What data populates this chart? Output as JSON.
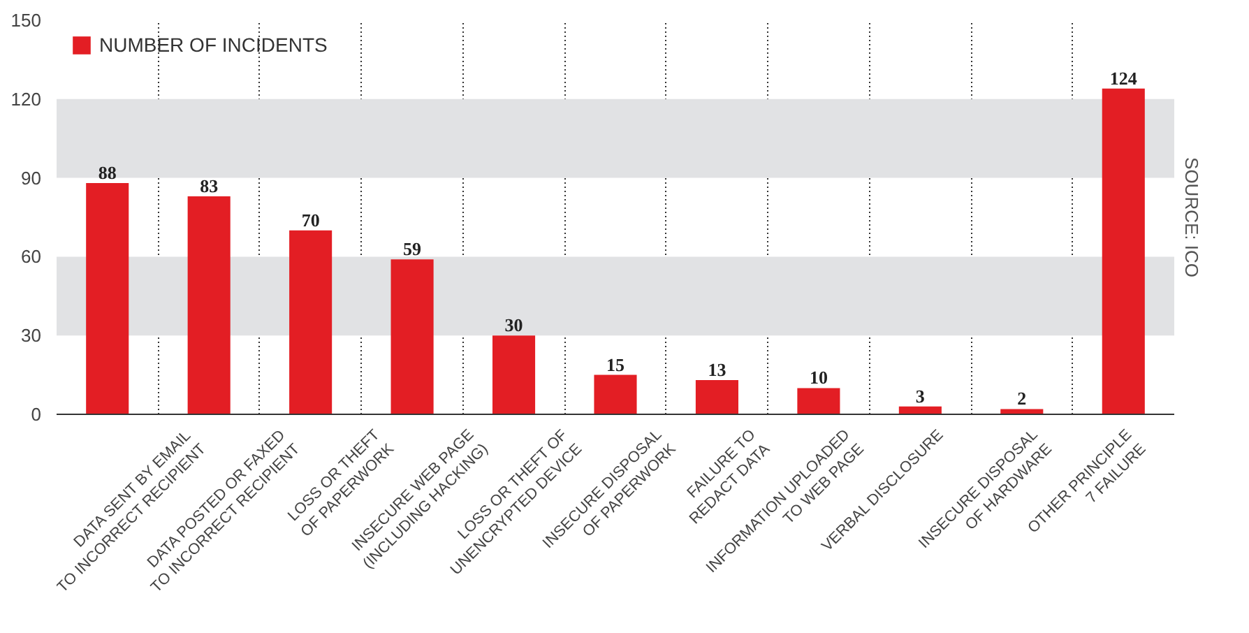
{
  "chart_data": {
    "type": "bar",
    "categories": [
      "DATA SENT BY EMAIL\nTO INCORRECT RECIPIENT",
      "DATA POSTED OR FAXED\nTO INCORRECT RECIPIENT",
      "LOSS OR THEFT\nOF PAPERWORK",
      "INSECURE WEB PAGE\n(INCLUDING HACKING)",
      "LOSS OR THEFT OF\nUNENCRYPTED DEVICE",
      "INSECURE DISPOSAL\nOF PAPERWORK",
      "FAILURE TO\nREDACT DATA",
      "INFORMATION UPLOADED\nTO WEB PAGE",
      "VERBAL DISCLOSURE",
      "INSECURE DISPOSAL\nOF HARDWARE",
      "OTHER PRINCIPLE\n7 FAILURE"
    ],
    "series": [
      {
        "name": "NUMBER OF INCIDENTS",
        "color": "#e31e24",
        "values": [
          88,
          83,
          70,
          59,
          30,
          15,
          13,
          10,
          3,
          2,
          124
        ]
      }
    ],
    "ylim": [
      0,
      150
    ],
    "yticks": [
      0,
      30,
      60,
      90,
      120,
      150
    ],
    "grid": true,
    "legend": "top left",
    "data_labels": true,
    "annotations": [
      "SOURCE: ICO"
    ]
  }
}
